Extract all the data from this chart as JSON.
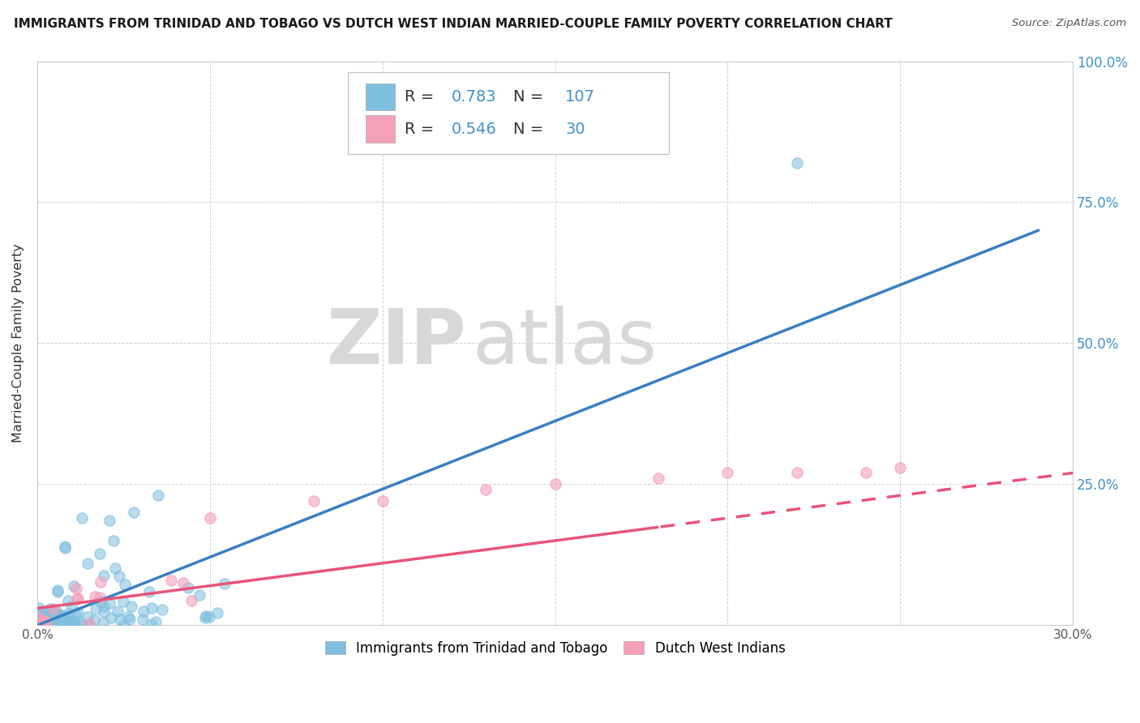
{
  "title": "IMMIGRANTS FROM TRINIDAD AND TOBAGO VS DUTCH WEST INDIAN MARRIED-COUPLE FAMILY POVERTY CORRELATION CHART",
  "source": "Source: ZipAtlas.com",
  "ylabel": "Married-Couple Family Poverty",
  "legend_label_blue": "Immigrants from Trinidad and Tobago",
  "legend_label_pink": "Dutch West Indians",
  "R_blue": 0.783,
  "N_blue": 107,
  "R_pink": 0.546,
  "N_pink": 30,
  "xlim": [
    0.0,
    0.3
  ],
  "ylim": [
    0.0,
    1.0
  ],
  "xticks": [
    0.0,
    0.05,
    0.1,
    0.15,
    0.2,
    0.25,
    0.3
  ],
  "yticks": [
    0.0,
    0.25,
    0.5,
    0.75,
    1.0
  ],
  "xtick_labels": [
    "0.0%",
    "",
    "",
    "",
    "",
    "",
    "30.0%"
  ],
  "ytick_labels_left": [
    "",
    "",
    "",
    "",
    ""
  ],
  "ytick_labels_right": [
    "",
    "25.0%",
    "50.0%",
    "75.0%",
    "100.0%"
  ],
  "color_blue": "#7fbfdf",
  "color_pink": "#f4a0b8",
  "color_blue_line": "#3a7fc1",
  "color_pink_line": "#e8547a",
  "color_right_axis": "#4292c6",
  "watermark_zip": "ZIP",
  "watermark_atlas": "atlas",
  "background_color": "#ffffff",
  "grid_color": "#cccccc",
  "trend_blue_x0": 0.0,
  "trend_blue_y0": 0.0,
  "trend_blue_x1": 0.29,
  "trend_blue_y1": 0.7,
  "trend_pink_x0": 0.0,
  "trend_pink_y0": 0.03,
  "trend_pink_x1": 0.3,
  "trend_pink_y1": 0.27,
  "trend_pink_dash_start": 0.18
}
